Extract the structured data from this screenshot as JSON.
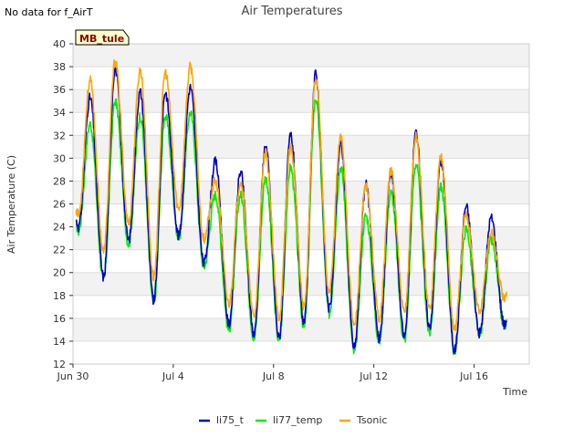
{
  "no_data_note": "No data for f_AirT",
  "chart_data": {
    "type": "line",
    "title": "Air Temperatures",
    "xlabel": "Time",
    "ylabel": "Air Temperature (C)",
    "ylim": [
      12,
      40
    ],
    "xlim_days": [
      0,
      18.2
    ],
    "yticks": [
      12,
      14,
      16,
      18,
      20,
      22,
      24,
      26,
      28,
      30,
      32,
      34,
      36,
      38,
      40
    ],
    "xticks": [
      {
        "day": 0,
        "label": "Jun 30"
      },
      {
        "day": 4,
        "label": "Jul 4"
      },
      {
        "day": 8,
        "label": "Jul 8"
      },
      {
        "day": 12,
        "label": "Jul 12"
      },
      {
        "day": 16,
        "label": "Jul 16"
      }
    ],
    "grid": true,
    "site_label": "MB_tule",
    "legend_position": "bottom",
    "daily_extremes": {
      "days": [
        0,
        1,
        2,
        3,
        4,
        5,
        6,
        7,
        8,
        9,
        10,
        11,
        12,
        13,
        14,
        15,
        16,
        17
      ],
      "li75_t_min": [
        24.0,
        19.6,
        22.8,
        17.5,
        23.2,
        20.8,
        15.5,
        14.6,
        14.3,
        15.6,
        16.8,
        13.4,
        14.2,
        14.4,
        15.2,
        13.2,
        14.7,
        15.4
      ],
      "li75_t_max": [
        35.3,
        37.8,
        35.8,
        35.8,
        36.2,
        29.7,
        28.8,
        31.1,
        32.0,
        37.4,
        31.2,
        27.7,
        28.8,
        32.3,
        29.8,
        25.8,
        24.8,
        24.8
      ],
      "li77_temp_min": [
        23.6,
        19.3,
        22.5,
        17.2,
        23.0,
        20.5,
        15.0,
        14.2,
        14.0,
        15.2,
        16.4,
        13.0,
        14.0,
        14.0,
        14.7,
        13.0,
        14.5,
        15.2
      ],
      "li77_temp_max": [
        33.0,
        35.0,
        33.7,
        33.7,
        34.0,
        26.8,
        26.8,
        28.3,
        29.2,
        35.2,
        29.2,
        25.0,
        27.0,
        29.5,
        27.5,
        23.8,
        22.8,
        22.8
      ],
      "Tsonic_min": [
        25.0,
        21.8,
        24.3,
        19.6,
        25.5,
        23.0,
        17.3,
        16.1,
        16.1,
        17.0,
        18.3,
        15.3,
        16.1,
        16.4,
        16.8,
        15.0,
        16.6,
        17.6
      ],
      "Tsonic_max": [
        36.8,
        38.5,
        37.7,
        37.5,
        38.0,
        28.0,
        28.0,
        30.4,
        31.0,
        37.0,
        31.8,
        27.5,
        28.9,
        31.9,
        30.2,
        25.0,
        23.5,
        23.5
      ]
    },
    "series": [
      {
        "name": "li75_t",
        "color": "#0000cc"
      },
      {
        "name": "li77_temp",
        "color": "#00ee00"
      },
      {
        "name": "Tsonic",
        "color": "#ffa500"
      }
    ]
  }
}
